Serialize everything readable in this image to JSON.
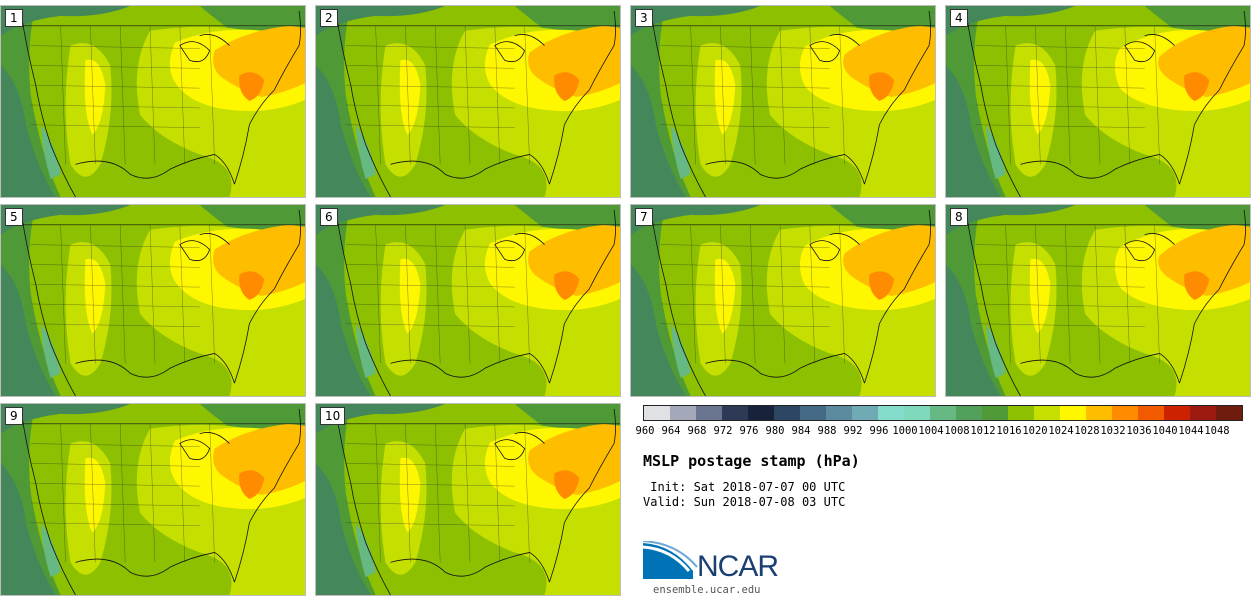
{
  "panels": [
    {
      "label": "1"
    },
    {
      "label": "2"
    },
    {
      "label": "3"
    },
    {
      "label": "4"
    },
    {
      "label": "5"
    },
    {
      "label": "6"
    },
    {
      "label": "7"
    },
    {
      "label": "8"
    },
    {
      "label": "9"
    },
    {
      "label": "10"
    }
  ],
  "colorbar": {
    "colors": [
      "#dfe1e5",
      "#a3a9b8",
      "#6a7590",
      "#2c3a55",
      "#18233b",
      "#2b4563",
      "#456a86",
      "#5c8a9e",
      "#70aab4",
      "#85dccb",
      "#80d8bd",
      "#66b983",
      "#51a15c",
      "#4f9a36",
      "#8cc000",
      "#c4df00",
      "#fff700",
      "#ffbd00",
      "#ff8c00",
      "#f25a00",
      "#cc2200",
      "#9d1a10",
      "#6e1c0d"
    ],
    "labels": [
      "960",
      "964",
      "968",
      "972",
      "976",
      "980",
      "984",
      "988",
      "992",
      "996",
      "1000",
      "1004",
      "1008",
      "1012",
      "1016",
      "1020",
      "1024",
      "1028",
      "1032",
      "1036",
      "1040",
      "1044",
      "1048"
    ]
  },
  "info": {
    "title": "MSLP postage stamp (hPa)",
    "init": " Init: Sat 2018-07-07 00 UTC",
    "valid": "Valid: Sun 2018-07-08 03 UTC"
  },
  "logo": {
    "text": "NCAR",
    "url": "ensemble.ucar.edu"
  }
}
